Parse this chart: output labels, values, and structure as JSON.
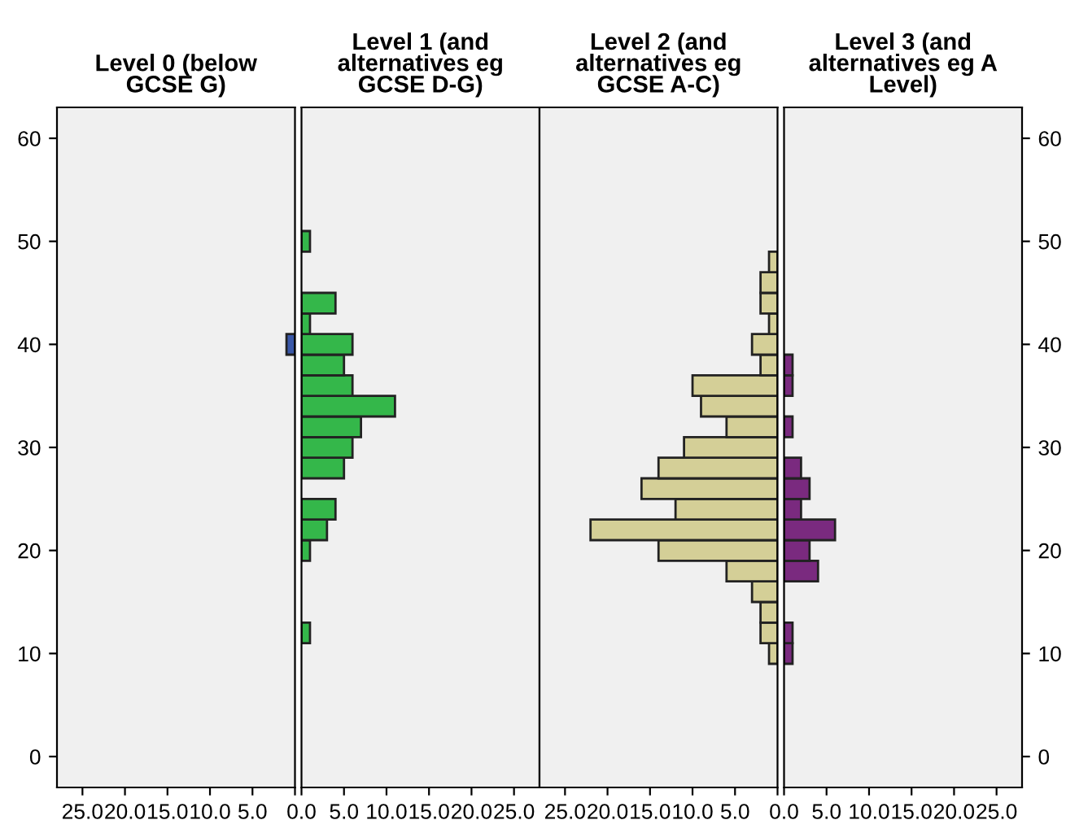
{
  "chart_data": [
    {
      "type": "histogram",
      "orientation": "horizontal",
      "title": "Level 0 (below GCSE G)",
      "bins": [
        9,
        11,
        13,
        15,
        17,
        19,
        21,
        23,
        25,
        27,
        29,
        31,
        33,
        35,
        37,
        39,
        41,
        43,
        45,
        47,
        49,
        51
      ],
      "values": [
        0,
        0,
        0,
        0,
        0,
        0,
        0,
        0,
        0,
        0,
        0,
        0,
        0,
        0,
        0,
        1,
        0,
        0,
        0,
        0,
        0
      ],
      "color": "#3a58a8",
      "xlim": [
        28,
        0
      ],
      "xticks": [
        {
          "value": 25,
          "label": "25.0"
        },
        {
          "value": 20,
          "label": "20.0"
        },
        {
          "value": 15,
          "label": "15.0"
        },
        {
          "value": 10,
          "label": "10.0"
        },
        {
          "value": 5,
          "label": "5.0"
        },
        {
          "value": 0,
          "label": null
        }
      ],
      "ylim": [
        -3,
        63
      ],
      "yticks": [
        0,
        10,
        20,
        30,
        40,
        50,
        60
      ],
      "grid": false
    },
    {
      "type": "histogram",
      "orientation": "horizontal",
      "title": "Level 1 (and alternatives eg GCSE D-G)",
      "bins": [
        9,
        11,
        13,
        15,
        17,
        19,
        21,
        23,
        25,
        27,
        29,
        31,
        33,
        35,
        37,
        39,
        41,
        43,
        45,
        47,
        49,
        51
      ],
      "values": [
        0,
        1,
        0,
        0,
        0,
        1,
        3,
        4,
        0,
        5,
        6,
        7,
        11,
        6,
        5,
        6,
        1,
        4,
        0,
        0,
        1
      ],
      "color": "#34b74a",
      "xlim": [
        0,
        28
      ],
      "xticks": [
        {
          "value": 0,
          "label": "0.0"
        },
        {
          "value": 5,
          "label": "5.0"
        },
        {
          "value": 10,
          "label": "10.0"
        },
        {
          "value": 15,
          "label": "15.0"
        },
        {
          "value": 20,
          "label": "20.0"
        },
        {
          "value": 25,
          "label": "25.0"
        }
      ],
      "ylim": [
        -3,
        63
      ],
      "tick_labels": "x",
      "grid": false
    },
    {
      "type": "histogram",
      "orientation": "horizontal",
      "title": "Level 2 (and alternatives eg GCSE A-C)",
      "bins": [
        9,
        11,
        13,
        15,
        17,
        19,
        21,
        23,
        25,
        27,
        29,
        31,
        33,
        35,
        37,
        39,
        41,
        43,
        45,
        47,
        49,
        51
      ],
      "values": [
        1,
        2,
        2,
        3,
        6,
        14,
        22,
        12,
        16,
        14,
        11,
        6,
        9,
        10,
        2,
        3,
        1,
        2,
        2,
        1,
        0
      ],
      "color": "#d4cf97",
      "xlim": [
        28,
        0
      ],
      "xticks": [
        {
          "value": 25,
          "label": "25.0"
        },
        {
          "value": 20,
          "label": "20.0"
        },
        {
          "value": 15,
          "label": "15.0"
        },
        {
          "value": 10,
          "label": "10.0"
        },
        {
          "value": 5,
          "label": "5.0"
        },
        {
          "value": 0,
          "label": null
        }
      ],
      "ylim": [
        -3,
        63
      ],
      "tick_labels": "x",
      "grid": false
    },
    {
      "type": "histogram",
      "orientation": "horizontal",
      "title": "Level 3 (and alternatives eg A Level)",
      "bins": [
        9,
        11,
        13,
        15,
        17,
        19,
        21,
        23,
        25,
        27,
        29,
        31,
        33,
        35,
        37,
        39,
        41,
        43,
        45,
        47,
        49,
        51
      ],
      "values": [
        1,
        1,
        0,
        0,
        4,
        3,
        6,
        2,
        3,
        2,
        0,
        1,
        0,
        1,
        1,
        0,
        0,
        0,
        0,
        0,
        0
      ],
      "color": "#7a2a7f",
      "xlim": [
        0,
        28
      ],
      "xticks": [
        {
          "value": 0,
          "label": "0.0"
        },
        {
          "value": 5,
          "label": "5.0"
        },
        {
          "value": 10,
          "label": "10.0"
        },
        {
          "value": 15,
          "label": "15.0"
        },
        {
          "value": 20,
          "label": "20.0"
        },
        {
          "value": 25,
          "label": "25.0"
        }
      ],
      "ylim": [
        -3,
        63
      ],
      "yticks": [
        0,
        10,
        20,
        30,
        40,
        50,
        60
      ],
      "grid": false
    }
  ]
}
